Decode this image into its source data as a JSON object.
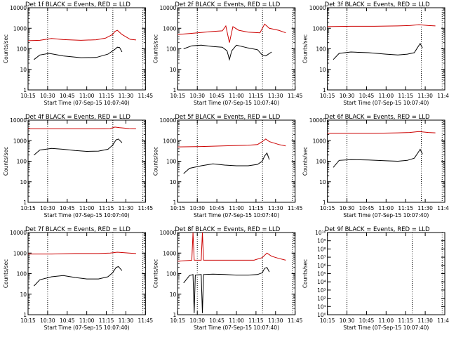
{
  "chart_data": [
    {
      "type": "line",
      "title": "Det 1f BLACK = Events, RED = LLD",
      "xlabel": "Start Time (07-Sep-15 10:07:40)",
      "ylabel": "Counts/sec",
      "scale": "log",
      "ylim": [
        1,
        10000
      ],
      "y_tick_labels": [
        "1",
        "10",
        "100",
        "1000",
        "10000"
      ],
      "x_tick_labels": [
        "10:15",
        "10:30",
        "10:45",
        "11:00",
        "11:15",
        "11:30",
        "11:45"
      ],
      "vlines": [
        "10:30",
        "11:20",
        "11:43"
      ],
      "series": [
        {
          "color": "#000000",
          "points": [
            [
              0.05,
              30
            ],
            [
              0.1,
              50
            ],
            [
              0.18,
              60
            ],
            [
              0.3,
              45
            ],
            [
              0.45,
              37
            ],
            [
              0.58,
              38
            ],
            [
              0.68,
              55
            ],
            [
              0.74,
              95
            ],
            [
              0.76,
              120
            ],
            [
              0.78,
              115
            ],
            [
              0.8,
              70
            ]
          ]
        },
        {
          "color": "#cc0000",
          "points": [
            [
              0,
              250
            ],
            [
              0.1,
              260
            ],
            [
              0.2,
              320
            ],
            [
              0.3,
              280
            ],
            [
              0.45,
              260
            ],
            [
              0.58,
              275
            ],
            [
              0.66,
              330
            ],
            [
              0.72,
              500
            ],
            [
              0.74,
              700
            ],
            [
              0.76,
              800
            ],
            [
              0.8,
              500
            ],
            [
              0.87,
              290
            ],
            [
              0.92,
              270
            ]
          ]
        }
      ]
    },
    {
      "type": "line",
      "title": "Det 2f BLACK = Events, RED = LLD",
      "xlabel": "Start Time (07-Sep-15 10:07:40)",
      "ylabel": "Counts/sec",
      "scale": "log",
      "ylim": [
        1,
        10000
      ],
      "y_tick_labels": [
        "1",
        "10",
        "100",
        "1000",
        "10000"
      ],
      "x_tick_labels": [
        "10:15",
        "10:30",
        "10:45",
        "11:00",
        "11:15",
        "11:30",
        "11:45"
      ],
      "vlines": [
        "10:30",
        "11:20",
        "11:43"
      ],
      "series": [
        {
          "color": "#000000",
          "points": [
            [
              0.05,
              100
            ],
            [
              0.12,
              140
            ],
            [
              0.2,
              150
            ],
            [
              0.3,
              130
            ],
            [
              0.38,
              120
            ],
            [
              0.42,
              80
            ],
            [
              0.44,
              30
            ],
            [
              0.46,
              80
            ],
            [
              0.5,
              150
            ],
            [
              0.6,
              110
            ],
            [
              0.68,
              90
            ],
            [
              0.72,
              50
            ],
            [
              0.75,
              45
            ],
            [
              0.8,
              70
            ]
          ]
        },
        {
          "color": "#cc0000",
          "points": [
            [
              0,
              500
            ],
            [
              0.1,
              550
            ],
            [
              0.2,
              620
            ],
            [
              0.3,
              700
            ],
            [
              0.38,
              750
            ],
            [
              0.41,
              1300
            ],
            [
              0.44,
              200
            ],
            [
              0.47,
              1200
            ],
            [
              0.52,
              800
            ],
            [
              0.6,
              650
            ],
            [
              0.7,
              600
            ],
            [
              0.74,
              1600
            ],
            [
              0.78,
              1000
            ],
            [
              0.86,
              800
            ],
            [
              0.92,
              600
            ]
          ]
        }
      ]
    },
    {
      "type": "line",
      "title": "Det 3f BLACK = Events, RED = LLD",
      "xlabel": "Start Time (07-Sep-15 10:07:40)",
      "ylabel": "Counts/sec",
      "scale": "log",
      "ylim": [
        1,
        10000
      ],
      "y_tick_labels": [
        "1",
        "10",
        "100",
        "1000",
        "10000"
      ],
      "x_tick_labels": [
        "10:15",
        "10:30",
        "10:45",
        "11:00",
        "11:15",
        "11:30",
        "11:45"
      ],
      "vlines": [
        "10:30",
        "11:27",
        "11:43"
      ],
      "series": [
        {
          "color": "#000000",
          "points": [
            [
              0.05,
              30
            ],
            [
              0.1,
              60
            ],
            [
              0.2,
              70
            ],
            [
              0.35,
              65
            ],
            [
              0.5,
              55
            ],
            [
              0.6,
              50
            ],
            [
              0.68,
              55
            ],
            [
              0.74,
              65
            ],
            [
              0.77,
              120
            ],
            [
              0.79,
              180
            ],
            [
              0.81,
              110
            ]
          ]
        },
        {
          "color": "#cc0000",
          "points": [
            [
              0,
              1200
            ],
            [
              0.2,
              1250
            ],
            [
              0.4,
              1250
            ],
            [
              0.6,
              1300
            ],
            [
              0.7,
              1350
            ],
            [
              0.78,
              1500
            ],
            [
              0.86,
              1350
            ],
            [
              0.92,
              1300
            ]
          ]
        }
      ]
    },
    {
      "type": "line",
      "title": "Det 4f BLACK = Events, RED = LLD",
      "xlabel": "Start Time (07-Sep-15 10:07:40)",
      "ylabel": "Counts/sec",
      "scale": "log",
      "ylim": [
        1,
        10000
      ],
      "y_tick_labels": [
        "1",
        "10",
        "100",
        "1000",
        "10000"
      ],
      "x_tick_labels": [
        "10:15",
        "10:30",
        "10:45",
        "11:00",
        "11:15",
        "11:30",
        "11:45"
      ],
      "vlines": [
        "10:30",
        "11:20",
        "11:43"
      ],
      "series": [
        {
          "color": "#000000",
          "points": [
            [
              0.05,
              200
            ],
            [
              0.1,
              350
            ],
            [
              0.2,
              420
            ],
            [
              0.3,
              380
            ],
            [
              0.4,
              330
            ],
            [
              0.5,
              300
            ],
            [
              0.6,
              310
            ],
            [
              0.68,
              380
            ],
            [
              0.72,
              600
            ],
            [
              0.75,
              1100
            ],
            [
              0.77,
              1200
            ],
            [
              0.8,
              800
            ]
          ]
        },
        {
          "color": "#cc0000",
          "points": [
            [
              0,
              3800
            ],
            [
              0.2,
              3800
            ],
            [
              0.4,
              3800
            ],
            [
              0.6,
              3800
            ],
            [
              0.7,
              3900
            ],
            [
              0.74,
              4600
            ],
            [
              0.78,
              4300
            ],
            [
              0.86,
              3900
            ],
            [
              0.92,
              3800
            ]
          ]
        }
      ]
    },
    {
      "type": "line",
      "title": "Det 5f BLACK = Events, RED = LLD",
      "xlabel": "Start Time (07-Sep-15 10:07:40)",
      "ylabel": "Counts/sec",
      "scale": "log",
      "ylim": [
        1,
        10000
      ],
      "y_tick_labels": [
        "1",
        "10",
        "100",
        "1000",
        "10000"
      ],
      "x_tick_labels": [
        "10:15",
        "10:30",
        "10:45",
        "11:00",
        "11:15",
        "11:30",
        "11:45"
      ],
      "vlines": [
        "10:30",
        "11:20",
        "11:43"
      ],
      "series": [
        {
          "color": "#000000",
          "points": [
            [
              0.05,
              25
            ],
            [
              0.1,
              45
            ],
            [
              0.2,
              60
            ],
            [
              0.3,
              75
            ],
            [
              0.4,
              65
            ],
            [
              0.5,
              60
            ],
            [
              0.6,
              60
            ],
            [
              0.68,
              70
            ],
            [
              0.72,
              100
            ],
            [
              0.74,
              180
            ],
            [
              0.76,
              250
            ],
            [
              0.78,
              120
            ]
          ]
        },
        {
          "color": "#cc0000",
          "points": [
            [
              0,
              500
            ],
            [
              0.2,
              520
            ],
            [
              0.4,
              560
            ],
            [
              0.6,
              600
            ],
            [
              0.68,
              650
            ],
            [
              0.72,
              900
            ],
            [
              0.75,
              1200
            ],
            [
              0.78,
              900
            ],
            [
              0.86,
              650
            ],
            [
              0.92,
              550
            ]
          ]
        }
      ]
    },
    {
      "type": "line",
      "title": "Det 6f BLACK = Events, RED = LLD",
      "xlabel": "Start Time (07-Sep-15 10:07:40)",
      "ylabel": "Counts/sec",
      "scale": "log",
      "ylim": [
        1,
        10000
      ],
      "y_tick_labels": [
        "1",
        "10",
        "100",
        "1000",
        "10000"
      ],
      "x_tick_labels": [
        "10:15",
        "10:30",
        "10:45",
        "11:00",
        "11:15",
        "11:30",
        "11:45"
      ],
      "vlines": [
        "10:30",
        "11:27",
        "11:43"
      ],
      "series": [
        {
          "color": "#000000",
          "points": [
            [
              0.05,
              50
            ],
            [
              0.1,
              110
            ],
            [
              0.2,
              120
            ],
            [
              0.35,
              115
            ],
            [
              0.5,
              105
            ],
            [
              0.6,
              100
            ],
            [
              0.68,
              110
            ],
            [
              0.74,
              140
            ],
            [
              0.77,
              250
            ],
            [
              0.79,
              380
            ],
            [
              0.81,
              220
            ]
          ]
        },
        {
          "color": "#cc0000",
          "points": [
            [
              0,
              2300
            ],
            [
              0.2,
              2300
            ],
            [
              0.4,
              2300
            ],
            [
              0.6,
              2400
            ],
            [
              0.7,
              2500
            ],
            [
              0.78,
              2800
            ],
            [
              0.86,
              2500
            ],
            [
              0.92,
              2400
            ]
          ]
        }
      ]
    },
    {
      "type": "line",
      "title": "Det 7f BLACK = Events, RED = LLD",
      "xlabel": "Start Time (07-Sep-15 10:07:40)",
      "ylabel": "Counts/sec",
      "scale": "log",
      "ylim": [
        1,
        10000
      ],
      "y_tick_labels": [
        "1",
        "10",
        "100",
        "1000",
        "10000"
      ],
      "x_tick_labels": [
        "10:15",
        "10:30",
        "10:45",
        "11:00",
        "11:15",
        "11:30",
        "11:45"
      ],
      "vlines": [
        "10:30",
        "11:20",
        "11:43"
      ],
      "series": [
        {
          "color": "#000000",
          "points": [
            [
              0.05,
              25
            ],
            [
              0.1,
              50
            ],
            [
              0.2,
              70
            ],
            [
              0.3,
              80
            ],
            [
              0.4,
              65
            ],
            [
              0.5,
              55
            ],
            [
              0.6,
              55
            ],
            [
              0.68,
              70
            ],
            [
              0.72,
              110
            ],
            [
              0.75,
              200
            ],
            [
              0.77,
              220
            ],
            [
              0.8,
              140
            ]
          ]
        },
        {
          "color": "#cc0000",
          "points": [
            [
              0,
              900
            ],
            [
              0.2,
              900
            ],
            [
              0.4,
              950
            ],
            [
              0.6,
              950
            ],
            [
              0.7,
              1000
            ],
            [
              0.76,
              1100
            ],
            [
              0.86,
              1000
            ],
            [
              0.92,
              950
            ]
          ]
        }
      ]
    },
    {
      "type": "line",
      "title": "Det 8f BLACK = Events, RED = LLD",
      "xlabel": "Start Time (07-Sep-15 10:07:40)",
      "ylabel": "Counts/sec",
      "scale": "log",
      "ylim": [
        1,
        10000
      ],
      "y_tick_labels": [
        "1",
        "10",
        "100",
        "1000",
        "10000"
      ],
      "x_tick_labels": [
        "10:15",
        "10:30",
        "10:45",
        "11:00",
        "11:15",
        "11:30",
        "11:45"
      ],
      "vlines": [
        "10:30",
        "11:20",
        "11:43"
      ],
      "series": [
        {
          "color": "#000000",
          "points": [
            [
              0.05,
              35
            ],
            [
              0.1,
              80
            ],
            [
              0.13,
              90
            ],
            [
              0.14,
              1.2
            ],
            [
              0.15,
              85
            ],
            [
              0.2,
              90
            ],
            [
              0.21,
              1.2
            ],
            [
              0.22,
              90
            ],
            [
              0.3,
              95
            ],
            [
              0.4,
              90
            ],
            [
              0.5,
              85
            ],
            [
              0.6,
              85
            ],
            [
              0.68,
              90
            ],
            [
              0.72,
              110
            ],
            [
              0.74,
              180
            ],
            [
              0.76,
              200
            ],
            [
              0.78,
              120
            ]
          ]
        },
        {
          "color": "#cc0000",
          "points": [
            [
              0,
              400
            ],
            [
              0.12,
              450
            ],
            [
              0.13,
              10000
            ],
            [
              0.14,
              450
            ],
            [
              0.2,
              450
            ],
            [
              0.21,
              10000
            ],
            [
              0.22,
              450
            ],
            [
              0.35,
              450
            ],
            [
              0.5,
              450
            ],
            [
              0.65,
              450
            ],
            [
              0.72,
              600
            ],
            [
              0.76,
              1000
            ],
            [
              0.8,
              700
            ],
            [
              0.86,
              550
            ],
            [
              0.92,
              450
            ]
          ]
        }
      ]
    },
    {
      "type": "line",
      "title": "Det 9f BLACK = Events, RED = LLD",
      "xlabel": "Start Time (07-Sep-15 10:07:40)",
      "ylabel": "Counts/sec",
      "scale": "log",
      "ylim": [
        1,
        10000000000
      ],
      "y_tick_labels": [
        "10⁰",
        "10¹",
        "10²",
        "10³",
        "10⁴",
        "10⁵",
        "10⁶",
        "10⁷",
        "10⁸",
        "10⁹",
        "10¹⁰"
      ],
      "x_tick_labels": [
        "10:15",
        "10:30",
        "10:45",
        "11:00",
        "11:15",
        "11:30",
        "11:45"
      ],
      "vlines": [
        "10:30",
        "11:20",
        "11:43"
      ],
      "series": []
    }
  ]
}
